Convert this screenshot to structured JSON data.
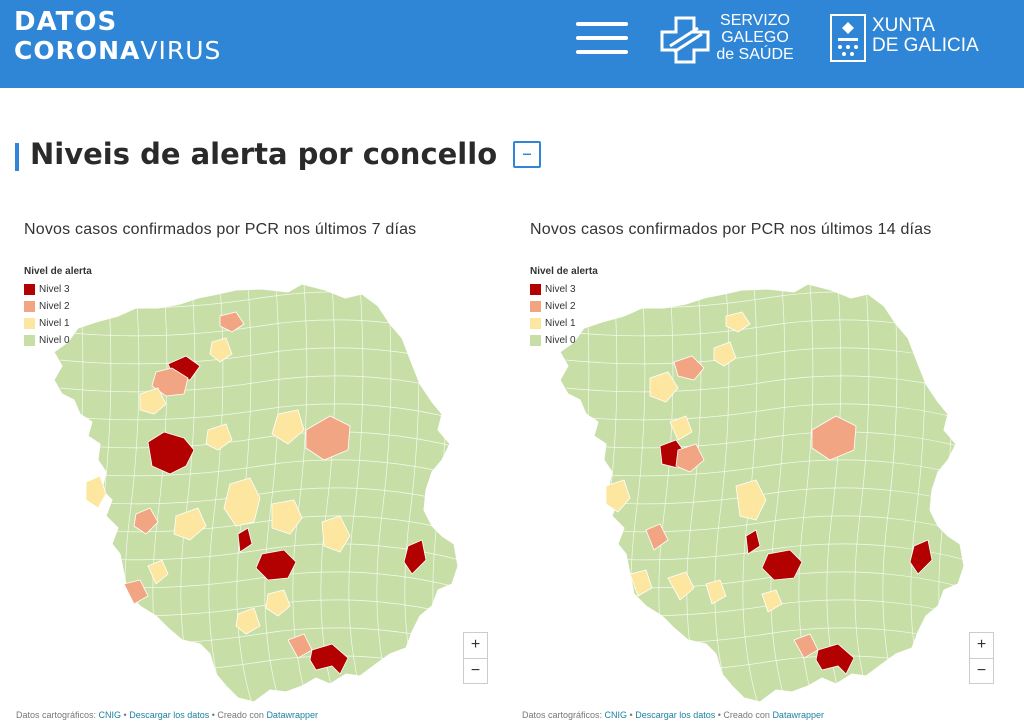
{
  "header": {
    "brand_line1": "DATOS",
    "brand_corona": "CORONA",
    "brand_virus": "VIRUS",
    "sergas_line1": "SERVIZO",
    "sergas_line2": "GALEGO",
    "sergas_line3": "de SAÚDE",
    "xunta_line1": "XUNTA",
    "xunta_line2": "DE GALICIA",
    "menu_icon": "hamburger-menu-icon",
    "bg_color": "#2f86d6"
  },
  "section": {
    "title": "Niveis de alerta por concello",
    "collapse_label": "–"
  },
  "legend": {
    "title": "Nivel de alerta",
    "items": [
      {
        "label": "Nivel 3",
        "color": "#b30000"
      },
      {
        "label": "Nivel 2",
        "color": "#f2a582"
      },
      {
        "label": "Nivel 1",
        "color": "#fde6a0"
      },
      {
        "label": "Nivel 0",
        "color": "#c7dfa7"
      }
    ]
  },
  "maps": [
    {
      "title": "Novos casos confirmados por PCR nos últimos 7 días",
      "zoom_in": "+",
      "zoom_out": "−"
    },
    {
      "title": "Novos casos confirmados por PCR nos últimos 14 días",
      "zoom_in": "+",
      "zoom_out": "−"
    }
  ],
  "footer": {
    "prefix": "Datos cartográficos: ",
    "cnig": "CNIG",
    "sep1": " • ",
    "download": "Descargar los datos",
    "sep2": " • Creado con ",
    "datawrapper": "Datawrapper"
  }
}
